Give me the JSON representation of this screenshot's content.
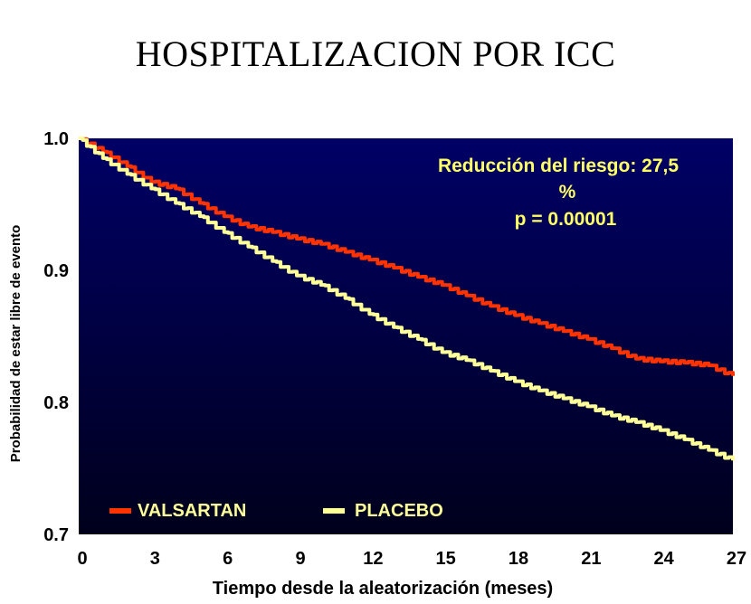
{
  "title": "HOSPITALIZACION POR ICC",
  "colors": {
    "plot_bg_top": "#000066",
    "plot_bg_bottom": "#00001c",
    "valsartan": "#ff3300",
    "placebo": "#ffff99",
    "annotation": "#ffff66"
  },
  "annotation": {
    "line1": "Reducción del riesgo: 27,5",
    "line2": "%",
    "line3": "p = 0.00001"
  },
  "legend": {
    "valsartan": "VALSARTAN",
    "placebo": "PLACEBO"
  },
  "chart_data": {
    "type": "line",
    "title": "HOSPITALIZACION POR ICC",
    "xlabel": "Tiempo desde la aleatorización (meses)",
    "ylabel": "Probabilidad de estar libre de evento",
    "xlim": [
      0,
      27
    ],
    "ylim": [
      0.7,
      1.0
    ],
    "xticks": [
      "0",
      "3",
      "6",
      "9",
      "12",
      "15",
      "18",
      "21",
      "24",
      "27"
    ],
    "yticks": [
      "1.0",
      "0.9",
      "0.8",
      "0.7"
    ],
    "x": [
      0,
      1,
      2,
      3,
      4,
      5,
      6,
      7,
      8,
      9,
      10,
      11,
      12,
      13,
      14,
      15,
      16,
      17,
      18,
      19,
      20,
      21,
      22,
      23,
      24,
      25,
      26,
      27
    ],
    "series": [
      {
        "name": "VALSARTAN",
        "values": [
          1.0,
          0.99,
          0.979,
          0.967,
          0.962,
          0.951,
          0.941,
          0.933,
          0.929,
          0.924,
          0.92,
          0.914,
          0.908,
          0.902,
          0.895,
          0.889,
          0.881,
          0.873,
          0.866,
          0.86,
          0.854,
          0.848,
          0.841,
          0.833,
          0.831,
          0.83,
          0.828,
          0.82
        ]
      },
      {
        "name": "PLACEBO",
        "values": [
          1.0,
          0.985,
          0.973,
          0.962,
          0.951,
          0.941,
          0.929,
          0.918,
          0.907,
          0.896,
          0.889,
          0.879,
          0.867,
          0.857,
          0.848,
          0.838,
          0.832,
          0.824,
          0.816,
          0.809,
          0.803,
          0.797,
          0.79,
          0.785,
          0.779,
          0.772,
          0.764,
          0.756
        ]
      }
    ],
    "grid": false,
    "legend_position": "bottom-left"
  }
}
